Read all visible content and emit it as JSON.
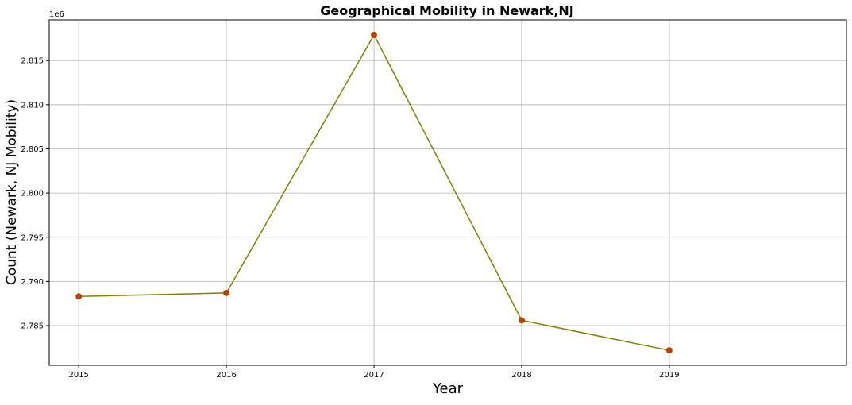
{
  "chart_data": {
    "type": "line",
    "title": "Geographical Mobility in Newark,NJ",
    "xlabel": "Year",
    "ylabel": "Count (Newark, NJ  Mobility)",
    "y_offset_label": "1e6",
    "x": [
      2015,
      2016,
      2017,
      2018,
      2019
    ],
    "x_tick_labels": [
      "2015",
      "2016",
      "2017",
      "2018",
      "2019"
    ],
    "series": [
      {
        "values": [
          2788300,
          2788700,
          2817900,
          2785600,
          2782200
        ]
      }
    ],
    "y_ticks": [
      2785000,
      2790000,
      2795000,
      2800000,
      2805000,
      2810000,
      2815000
    ],
    "y_tick_labels": [
      "2.785",
      "2.790",
      "2.795",
      "2.800",
      "2.805",
      "2.810",
      "2.815"
    ],
    "xlim": [
      2014.8,
      2020.2
    ],
    "ylim": [
      2780510,
      2819600
    ],
    "grid": true,
    "legend": "none",
    "colors": {
      "line": "#808000",
      "marker_fill": "#c04000",
      "marker_edge": "#9a3a00",
      "grid": "#b0b0b0",
      "axis": "#000000",
      "text": "#000000"
    }
  }
}
